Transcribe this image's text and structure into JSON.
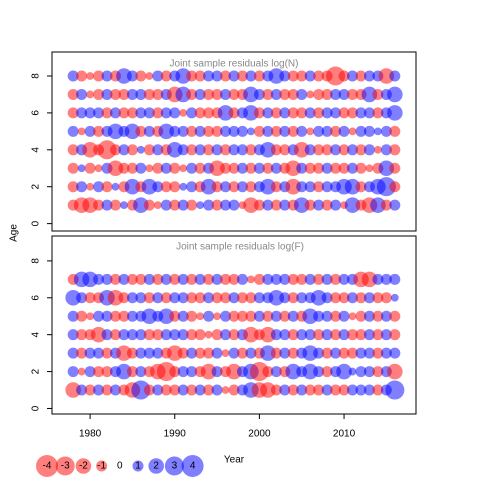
{
  "chart_data": [
    {
      "type": "bubble",
      "title": "Joint sample residuals log(N)",
      "ylabel": "Age",
      "x": [
        1978,
        1979,
        1980,
        1981,
        1982,
        1983,
        1984,
        1985,
        1986,
        1987,
        1988,
        1989,
        1990,
        1991,
        1992,
        1993,
        1994,
        1995,
        1996,
        1997,
        1998,
        1999,
        2000,
        2001,
        2002,
        2003,
        2004,
        2005,
        2006,
        2007,
        2008,
        2009,
        2010,
        2011,
        2012,
        2013,
        2014,
        2015,
        2016
      ],
      "y": [
        1,
        2,
        3,
        4,
        5,
        6,
        7,
        8
      ],
      "values": [
        [
          -1,
          -2,
          -2,
          -1,
          1,
          -1,
          0.5,
          -1,
          2,
          -1,
          -0.5,
          1,
          -1,
          1,
          -1,
          0.5,
          1,
          -1,
          1,
          1,
          -0.5,
          -2,
          -1,
          1,
          -1,
          1,
          -1,
          2,
          -1,
          1,
          -1,
          1,
          -0.5,
          2,
          -1,
          -2,
          2,
          -1,
          1
        ],
        [
          -1,
          1,
          -0.5,
          1,
          -1,
          0.5,
          -1,
          2,
          -1,
          2,
          1,
          -1,
          -1,
          0.5,
          1,
          -1,
          2,
          -1,
          1,
          -1,
          1,
          -1,
          1,
          2,
          -1,
          1,
          -2,
          1,
          1,
          -1,
          1,
          1,
          2,
          2,
          -1,
          1,
          2,
          3,
          -1
        ],
        [
          -1,
          0.5,
          -1,
          -0.5,
          1,
          -2,
          -1,
          -1,
          1,
          -0.5,
          -1,
          1,
          -1,
          -0.5,
          1,
          -1,
          1,
          -2,
          -1,
          -1,
          1,
          -1,
          1,
          -1,
          1,
          -1,
          -2,
          1,
          -1,
          -1,
          1,
          -1,
          -1,
          1,
          -1,
          -0.5,
          -1,
          2,
          -1
        ],
        [
          -1,
          1,
          -2,
          -1,
          -3,
          -1,
          1,
          -1,
          0.5,
          -1,
          1,
          -1,
          2,
          1,
          -1,
          1,
          -1,
          1,
          -1,
          1,
          1,
          -1,
          1,
          2,
          -1,
          -1,
          1,
          -2,
          1,
          -1,
          -1,
          1,
          -1,
          1,
          -1,
          1,
          -0.5,
          1,
          -1
        ],
        [
          1,
          -0.5,
          1,
          -1,
          1,
          2,
          1,
          2,
          -1,
          1,
          -1,
          2,
          1,
          1,
          -1,
          1,
          -1,
          -1,
          1,
          1,
          1,
          0.5,
          -1,
          1,
          -1,
          1,
          -1,
          1,
          -0.5,
          1,
          1,
          -1,
          1,
          -0.5,
          1,
          1,
          0.5,
          1,
          -1
        ],
        [
          -1,
          1,
          1,
          1,
          -1,
          1,
          -1,
          -1,
          1,
          1,
          -1,
          1,
          1,
          -0.5,
          1,
          -1,
          -1,
          -1,
          2,
          -1,
          1,
          2,
          -1,
          1,
          -1,
          1,
          -1,
          -1,
          1,
          -1,
          1,
          1,
          -1,
          -1,
          1,
          1,
          -1,
          1,
          2
        ],
        [
          -1,
          1,
          -0.5,
          -1,
          1,
          -1,
          -1,
          1,
          1,
          -1,
          -1,
          1,
          -2,
          2,
          -1,
          1,
          -1,
          -1,
          1,
          -1,
          -1,
          2,
          1,
          -1,
          1,
          -1,
          -1,
          1,
          -0.5,
          -1,
          -1,
          1,
          1,
          -1,
          -1,
          2,
          -1,
          1,
          2
        ],
        [
          1,
          -1,
          -0.5,
          -1,
          1,
          -1,
          2,
          1,
          -1,
          -0.5,
          1,
          -1,
          1,
          2,
          -1,
          -1,
          1,
          1,
          -1,
          1,
          -1,
          1,
          -1,
          1,
          2,
          1,
          -1,
          -1,
          1,
          -1,
          -1,
          -3,
          -1,
          1,
          -1,
          1,
          1,
          -2,
          1
        ]
      ],
      "xlim": [
        1975.5,
        2018.5
      ],
      "ylim": [
        -0.4,
        9.3
      ],
      "yticks": [
        0,
        2,
        4,
        6,
        8
      ],
      "positive_color": "#0000ff",
      "negative_color": "#ff0000"
    },
    {
      "type": "bubble",
      "title": "Joint sample residuals log(F)",
      "xlabel": "Year",
      "x": [
        1978,
        1979,
        1980,
        1981,
        1982,
        1983,
        1984,
        1985,
        1986,
        1987,
        1988,
        1989,
        1990,
        1991,
        1992,
        1993,
        1994,
        1995,
        1996,
        1997,
        1998,
        1999,
        2000,
        2001,
        2002,
        2003,
        2004,
        2005,
        2006,
        2007,
        2008,
        2009,
        2010,
        2011,
        2012,
        2013,
        2014,
        2015,
        2016
      ],
      "y": [
        1,
        2,
        3,
        4,
        5,
        6,
        7
      ],
      "values": [
        [
          -2,
          1,
          -1,
          1,
          -1,
          1,
          -1,
          -2,
          3,
          -1,
          1,
          -1,
          -1,
          1,
          -1,
          1,
          -1,
          1,
          -0.5,
          -1,
          1,
          2,
          -2,
          -2,
          -1,
          1,
          -1,
          1,
          -1,
          -1,
          1,
          -1,
          -1,
          1,
          1,
          1,
          -1,
          1,
          3
        ],
        [
          1,
          -0.5,
          1,
          -1,
          -1,
          1,
          2,
          -1,
          1,
          -1,
          -2,
          -3,
          -1,
          1,
          1,
          -1,
          -2,
          1,
          -1,
          -2,
          1,
          2,
          -3,
          -1,
          1,
          -1,
          2,
          1,
          2,
          1,
          -1,
          1,
          2,
          0.5,
          1,
          1,
          -1,
          1,
          -2
        ],
        [
          1,
          -1,
          1,
          1,
          -1,
          1,
          -2,
          -1,
          1,
          1,
          1,
          -1,
          -2,
          -1,
          1,
          -1,
          -1,
          1,
          -0.5,
          1,
          -1,
          1,
          -1,
          2,
          -1,
          1,
          -1,
          1,
          2,
          1,
          -1,
          1,
          -1,
          -1,
          1,
          1,
          -1,
          1,
          1
        ],
        [
          1,
          -1,
          -1,
          -2,
          1,
          -1,
          1,
          1,
          1,
          -1,
          -1,
          1,
          1,
          1,
          -1,
          -1,
          -0.5,
          -1,
          1,
          -1,
          1,
          -2,
          -1,
          -2,
          1,
          1,
          -1,
          1,
          1,
          -1,
          1,
          -1,
          1,
          -1,
          -1,
          1,
          -1,
          1,
          -1
        ],
        [
          1,
          -1,
          -0.5,
          1,
          1,
          -1,
          -1,
          1,
          1,
          2,
          1,
          2,
          -1,
          1,
          -1,
          -0.5,
          1,
          -0.5,
          1,
          -1,
          -1,
          -1,
          1,
          -1,
          1,
          -1,
          1,
          -1,
          2,
          1,
          1,
          -1,
          1,
          -0.5,
          -1,
          1,
          -1,
          1,
          -1
        ],
        [
          2,
          1,
          -1,
          -1,
          2,
          -2,
          -1,
          1,
          1,
          -1,
          1,
          -1,
          1,
          1,
          -1,
          -1,
          1,
          -1,
          -1,
          1,
          -1,
          -1,
          1,
          1,
          2,
          1,
          -1,
          1,
          1,
          2,
          1,
          -1,
          -1,
          1,
          -1,
          1,
          -1,
          -1,
          0.5
        ],
        [
          -1,
          2,
          2,
          1,
          1,
          -1,
          1,
          -1,
          -1,
          1,
          -1,
          1,
          -1,
          1,
          -1,
          1,
          -1,
          1,
          -1,
          -1,
          1,
          -0.5,
          -1,
          1,
          1,
          1,
          -1,
          -1,
          1,
          -1,
          1,
          -1,
          1,
          1,
          -2,
          -2,
          1,
          1,
          1
        ]
      ],
      "xlim": [
        1975.5,
        2018.5
      ],
      "ylim": [
        -0.3,
        9.35
      ],
      "yticks": [
        0,
        2,
        4,
        6,
        8
      ],
      "xticks": [
        1980,
        1990,
        2000,
        2010
      ],
      "positive_color": "#0000ff",
      "negative_color": "#ff0000",
      "legend_values": [
        -4,
        -3,
        -2,
        -1,
        0,
        1,
        2,
        3,
        4
      ]
    }
  ]
}
